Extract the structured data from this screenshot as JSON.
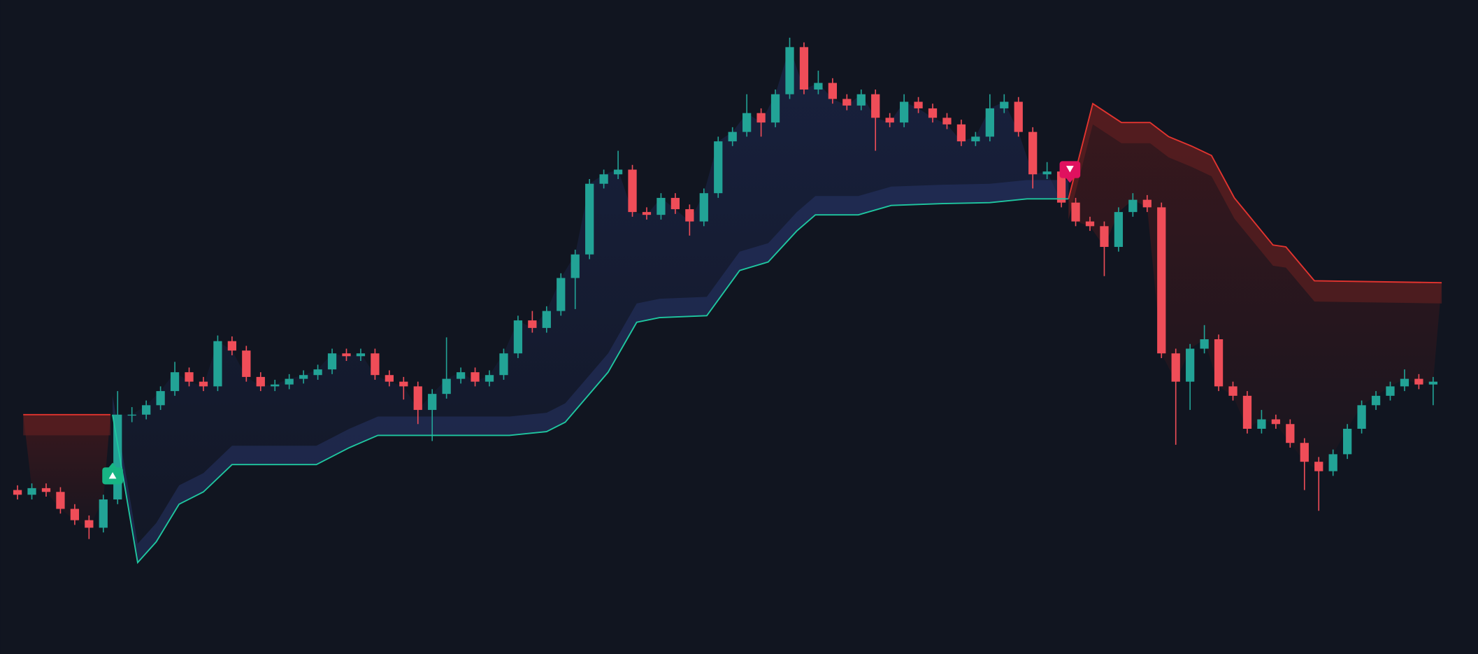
{
  "chart_data": {
    "type": "candlestick",
    "xlim": [
      -1.19,
      102.1
    ],
    "ylim": [
      0,
      694
    ],
    "up_color": "#22a396",
    "down_color": "#ef4d58",
    "candles": [
      [
        174,
        179,
        164,
        169
      ],
      [
        169,
        181,
        164,
        176
      ],
      [
        176,
        181,
        167,
        172
      ],
      [
        172,
        177,
        149,
        154
      ],
      [
        154,
        159,
        137,
        142
      ],
      [
        142,
        147,
        122,
        134
      ],
      [
        134,
        169,
        129,
        164
      ],
      [
        164,
        279,
        159,
        254
      ],
      [
        254,
        262,
        246,
        254
      ],
      [
        254,
        269,
        249,
        264
      ],
      [
        264,
        284,
        259,
        279
      ],
      [
        279,
        310,
        274,
        299
      ],
      [
        299,
        304,
        284,
        289
      ],
      [
        289,
        294,
        279,
        284
      ],
      [
        284,
        338,
        279,
        332
      ],
      [
        332,
        337,
        317,
        322
      ],
      [
        322,
        327,
        289,
        294
      ],
      [
        294,
        299,
        279,
        284
      ],
      [
        284,
        291,
        279,
        286
      ],
      [
        286,
        297,
        281,
        292
      ],
      [
        292,
        301,
        287,
        296
      ],
      [
        296,
        307,
        291,
        302
      ],
      [
        302,
        324,
        297,
        319
      ],
      [
        319,
        324,
        311,
        316
      ],
      [
        316,
        324,
        311,
        319
      ],
      [
        319,
        324,
        291,
        296
      ],
      [
        296,
        301,
        284,
        289
      ],
      [
        289,
        294,
        270,
        284
      ],
      [
        284,
        289,
        244,
        259
      ],
      [
        259,
        281,
        226,
        276
      ],
      [
        276,
        336,
        271,
        292
      ],
      [
        292,
        304,
        287,
        299
      ],
      [
        299,
        304,
        284,
        289
      ],
      [
        289,
        301,
        284,
        296
      ],
      [
        296,
        324,
        291,
        319
      ],
      [
        319,
        359,
        314,
        354
      ],
      [
        354,
        364,
        341,
        346
      ],
      [
        346,
        369,
        341,
        364
      ],
      [
        364,
        404,
        359,
        399
      ],
      [
        399,
        429,
        366,
        424
      ],
      [
        424,
        504,
        419,
        499
      ],
      [
        499,
        514,
        494,
        509
      ],
      [
        509,
        534,
        504,
        514
      ],
      [
        514,
        519,
        464,
        469
      ],
      [
        469,
        474,
        461,
        466
      ],
      [
        466,
        489,
        461,
        484
      ],
      [
        484,
        489,
        467,
        472
      ],
      [
        472,
        477,
        444,
        459
      ],
      [
        459,
        494,
        454,
        489
      ],
      [
        489,
        549,
        484,
        544
      ],
      [
        544,
        559,
        539,
        554
      ],
      [
        554,
        594,
        549,
        574
      ],
      [
        574,
        579,
        549,
        564
      ],
      [
        564,
        599,
        559,
        594
      ],
      [
        594,
        654,
        589,
        644
      ],
      [
        644,
        649,
        594,
        599
      ],
      [
        599,
        619,
        594,
        606
      ],
      [
        606,
        611,
        584,
        589
      ],
      [
        589,
        594,
        577,
        582
      ],
      [
        582,
        599,
        577,
        594
      ],
      [
        594,
        599,
        534,
        569
      ],
      [
        569,
        574,
        559,
        564
      ],
      [
        564,
        594,
        559,
        586
      ],
      [
        586,
        591,
        574,
        579
      ],
      [
        579,
        584,
        564,
        569
      ],
      [
        569,
        574,
        557,
        562
      ],
      [
        562,
        567,
        539,
        544
      ],
      [
        544,
        554,
        539,
        549
      ],
      [
        549,
        594,
        544,
        579
      ],
      [
        579,
        594,
        574,
        586
      ],
      [
        586,
        591,
        549,
        554
      ],
      [
        554,
        559,
        494,
        509
      ],
      [
        509,
        522,
        504,
        512
      ],
      [
        512,
        517,
        474,
        479
      ],
      [
        479,
        484,
        454,
        459
      ],
      [
        459,
        464,
        449,
        454
      ],
      [
        454,
        459,
        401,
        432
      ],
      [
        432,
        474,
        427,
        469
      ],
      [
        469,
        489,
        464,
        482
      ],
      [
        482,
        487,
        469,
        474
      ],
      [
        474,
        479,
        314,
        319
      ],
      [
        319,
        324,
        222,
        289
      ],
      [
        289,
        329,
        259,
        324
      ],
      [
        324,
        349,
        319,
        334
      ],
      [
        334,
        339,
        279,
        284
      ],
      [
        284,
        289,
        269,
        274
      ],
      [
        274,
        279,
        234,
        239
      ],
      [
        239,
        259,
        234,
        249
      ],
      [
        249,
        254,
        239,
        244
      ],
      [
        244,
        249,
        219,
        224
      ],
      [
        224,
        229,
        174,
        204
      ],
      [
        204,
        209,
        152,
        194
      ],
      [
        194,
        217,
        189,
        212
      ],
      [
        212,
        244,
        207,
        239
      ],
      [
        239,
        269,
        234,
        264
      ],
      [
        264,
        279,
        259,
        274
      ],
      [
        274,
        289,
        269,
        284
      ],
      [
        284,
        302,
        279,
        292
      ],
      [
        292,
        297,
        281,
        286
      ],
      [
        286,
        294,
        264,
        289
      ]
    ],
    "lines": [
      {
        "color": "#1fc7a0",
        "trend": "up",
        "x": [
          6.65,
          8.4,
          9.7,
          11.3,
          13.0,
          15.0,
          20.9,
          23.2,
          25.2,
          34.4,
          37.0,
          38.3,
          40.0,
          41.3,
          43.3,
          44.9,
          48.2,
          50.5,
          52.5,
          54.5,
          55.8,
          58.8,
          61.1,
          64.7,
          68.0,
          70.6,
          73.5
        ],
        "values": [
          254,
          97,
          119,
          159,
          172,
          201,
          201,
          219,
          232,
          232,
          236,
          246,
          276,
          299,
          352,
          357,
          359,
          407,
          416,
          449,
          466,
          466,
          476,
          478,
          479,
          483,
          483
        ]
      },
      {
        "color": "#e3342f",
        "trend": "down",
        "x": [
          0.4,
          6.5
        ],
        "values": [
          254,
          254
        ]
      },
      {
        "color": "#e3342f",
        "trend": "down",
        "x": [
          73.5,
          75.2,
          77.2,
          79.2,
          80.5,
          82.1,
          83.5,
          85.1,
          87.8,
          88.7,
          90.7,
          99.6
        ],
        "values": [
          483,
          584,
          564,
          564,
          549,
          539,
          529,
          484,
          434,
          432,
          396,
          394
        ]
      }
    ],
    "signals": [
      {
        "x": 6.65,
        "value": 189,
        "color": "#17b584",
        "direction": "up"
      },
      {
        "x": 73.6,
        "value": 514,
        "color": "#e0115f",
        "direction": "down"
      }
    ]
  }
}
